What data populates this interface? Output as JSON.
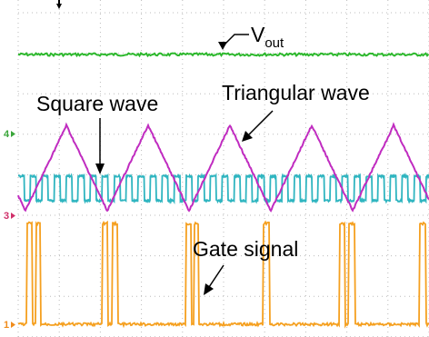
{
  "annotations": {
    "vout": {
      "main": "V",
      "sub": "out"
    },
    "square_wave": "Square wave",
    "triangular_wave": "Triangular wave",
    "gate_signal": "Gate signal"
  },
  "channels": [
    "4",
    "3",
    "1"
  ]
}
